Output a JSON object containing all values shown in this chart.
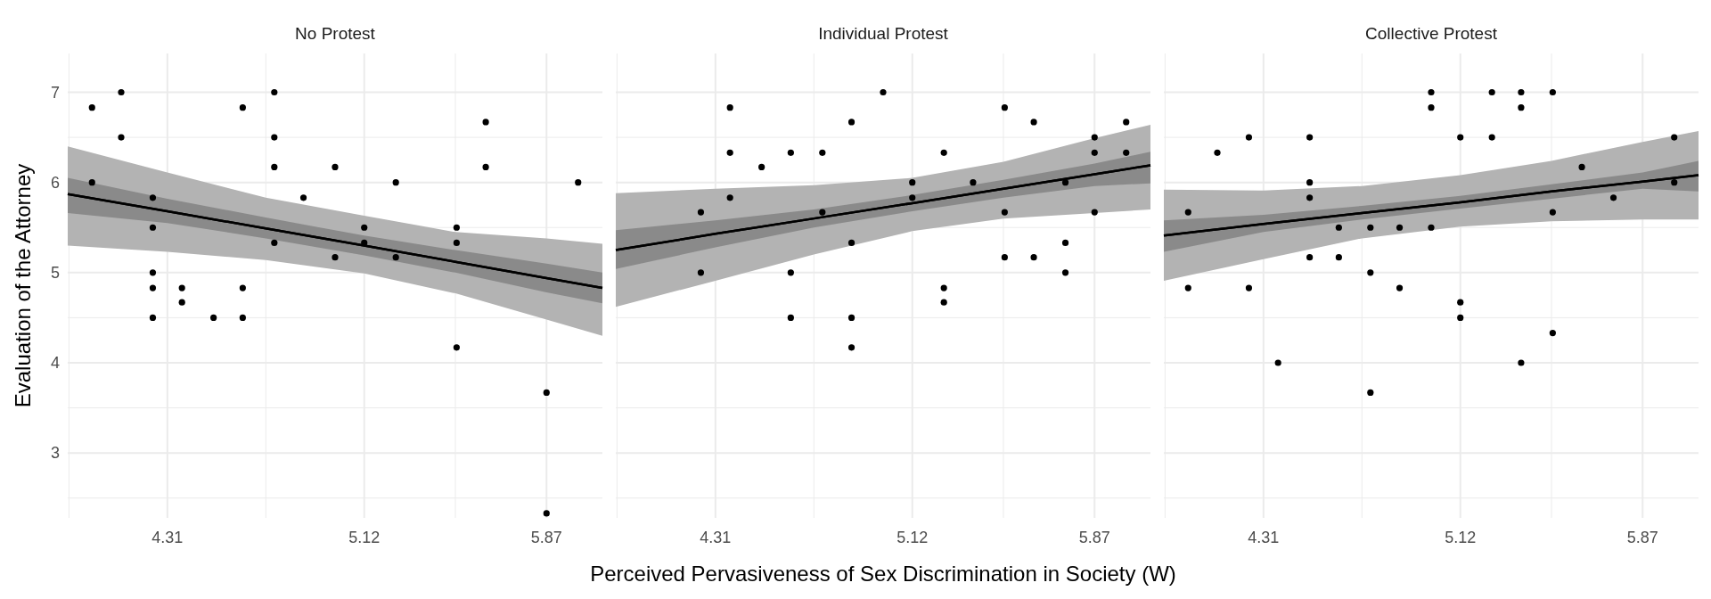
{
  "chart_data": [
    {
      "type": "scatter",
      "title": "No Protest",
      "ylabel": "Evaluation of the Attorney",
      "xlim": [
        3.9,
        6.1
      ],
      "ylim": [
        2.28,
        7.43
      ],
      "grid": true,
      "xticks": [
        {
          "value": 3.905,
          "label": null
        },
        4.31,
        {
          "value": 4.715,
          "label": null
        },
        5.12,
        {
          "value": 5.495,
          "label": null
        },
        5.87
      ],
      "yticks": [
        {
          "value": 2.5,
          "label": null
        },
        3,
        {
          "value": 3.5,
          "label": null
        },
        4,
        {
          "value": 4.5,
          "label": null
        },
        5,
        {
          "value": 5.5,
          "label": null
        },
        6,
        {
          "value": 6.5,
          "label": null
        },
        7
      ],
      "series": [
        {
          "type": "line",
          "color": "#000000",
          "x": [
            3.9,
            4.31,
            4.715,
            5.12,
            5.495,
            5.87,
            6.1
          ],
          "values": [
            5.87,
            5.68,
            5.49,
            5.3,
            5.12,
            4.94,
            4.83
          ],
          "lower": [
            5.3,
            5.23,
            5.14,
            4.99,
            4.77,
            4.48,
            4.3
          ],
          "upper": [
            6.4,
            6.11,
            5.83,
            5.63,
            5.45,
            5.38,
            5.32
          ]
        },
        {
          "type": "line",
          "color": "#000000",
          "x": [
            3.9,
            4.31,
            4.715,
            5.12,
            5.495,
            5.87,
            6.1
          ],
          "values": [
            5.87,
            5.68,
            5.49,
            5.3,
            5.12,
            4.94,
            4.83
          ],
          "lower": [
            5.66,
            5.55,
            5.38,
            5.19,
            5.0,
            4.78,
            4.66
          ],
          "upper": [
            6.05,
            5.82,
            5.61,
            5.41,
            5.25,
            5.1,
            5.0
          ]
        },
        {
          "type": "scatter",
          "color": "#000000",
          "x": [
            4.0,
            4.0,
            4.12,
            4.12,
            4.25,
            4.25,
            4.25,
            4.25,
            4.25,
            4.37,
            4.37,
            4.5,
            4.62,
            4.62,
            4.62,
            4.75,
            4.75,
            4.75,
            4.75,
            4.87,
            5.0,
            5.0,
            5.12,
            5.12,
            5.25,
            5.25,
            5.5,
            5.5,
            5.5,
            5.62,
            5.62,
            5.87,
            5.87,
            6.0
          ],
          "values": [
            6.83,
            6.0,
            7.0,
            6.5,
            5.83,
            5.5,
            5.0,
            4.83,
            4.5,
            4.83,
            4.67,
            4.5,
            6.83,
            4.83,
            4.5,
            7.0,
            6.5,
            6.17,
            5.33,
            5.83,
            6.17,
            5.17,
            5.5,
            5.33,
            6.0,
            5.17,
            5.5,
            5.33,
            4.17,
            6.67,
            6.17,
            3.67,
            2.33,
            6.0
          ]
        }
      ]
    },
    {
      "type": "scatter",
      "title": "Individual Protest",
      "xlabel": "Perceived Pervasiveness of Sex Discrimination in Society (W)",
      "xlim": [
        3.9,
        6.1
      ],
      "ylim": [
        2.28,
        7.43
      ],
      "grid": true,
      "tick_labels": "x",
      "xticks": [
        {
          "value": 3.905,
          "label": null
        },
        4.31,
        {
          "value": 4.715,
          "label": null
        },
        5.12,
        {
          "value": 5.495,
          "label": null
        },
        5.87
      ],
      "yticks": [
        {
          "value": 2.5,
          "label": null
        },
        3,
        {
          "value": 3.5,
          "label": null
        },
        4,
        {
          "value": 4.5,
          "label": null
        },
        5,
        {
          "value": 5.5,
          "label": null
        },
        6,
        {
          "value": 6.5,
          "label": null
        },
        7
      ],
      "series": [
        {
          "type": "line",
          "color": "#000000",
          "x": [
            3.9,
            4.31,
            4.715,
            5.12,
            5.495,
            5.87,
            6.1
          ],
          "values": [
            5.25,
            5.43,
            5.6,
            5.77,
            5.93,
            6.09,
            6.19
          ],
          "lower": [
            4.62,
            4.91,
            5.2,
            5.46,
            5.6,
            5.66,
            5.7
          ],
          "upper": [
            5.88,
            5.93,
            5.97,
            6.05,
            6.23,
            6.49,
            6.64
          ]
        },
        {
          "type": "line",
          "color": "#000000",
          "x": [
            3.9,
            4.31,
            4.715,
            5.12,
            5.495,
            5.87,
            6.1
          ],
          "values": [
            5.25,
            5.43,
            5.6,
            5.77,
            5.93,
            6.09,
            6.19
          ],
          "lower": [
            5.04,
            5.28,
            5.5,
            5.68,
            5.83,
            5.96,
            5.99
          ],
          "upper": [
            5.47,
            5.58,
            5.7,
            5.86,
            6.03,
            6.21,
            6.34
          ]
        },
        {
          "type": "scatter",
          "color": "#000000",
          "x": [
            4.25,
            4.25,
            4.37,
            4.37,
            4.37,
            4.5,
            4.62,
            4.62,
            4.62,
            4.75,
            4.75,
            4.87,
            4.87,
            4.87,
            4.87,
            5.0,
            5.12,
            5.12,
            5.25,
            5.25,
            5.25,
            5.37,
            5.5,
            5.5,
            5.5,
            5.62,
            5.62,
            5.75,
            5.75,
            5.75,
            5.87,
            5.87,
            5.87,
            6.0,
            6.0
          ],
          "values": [
            5.67,
            5.0,
            6.83,
            6.33,
            5.83,
            6.17,
            6.33,
            5.0,
            4.5,
            6.33,
            5.67,
            6.67,
            5.33,
            4.5,
            4.17,
            7.0,
            6.0,
            5.83,
            6.33,
            4.83,
            4.67,
            6.0,
            6.83,
            5.67,
            5.17,
            6.67,
            5.17,
            6.0,
            5.33,
            5.0,
            6.5,
            6.33,
            5.67,
            6.67,
            6.33
          ]
        }
      ]
    },
    {
      "type": "scatter",
      "title": "Collective Protest",
      "xlim": [
        3.9,
        6.1
      ],
      "ylim": [
        2.28,
        7.43
      ],
      "grid": true,
      "tick_labels": "x",
      "xticks": [
        {
          "value": 3.905,
          "label": null
        },
        4.31,
        {
          "value": 4.715,
          "label": null
        },
        5.12,
        {
          "value": 5.495,
          "label": null
        },
        5.87
      ],
      "yticks": [
        {
          "value": 2.5,
          "label": null
        },
        3,
        {
          "value": 3.5,
          "label": null
        },
        4,
        {
          "value": 4.5,
          "label": null
        },
        5,
        {
          "value": 5.5,
          "label": null
        },
        6,
        {
          "value": 6.5,
          "label": null
        },
        7
      ],
      "series": [
        {
          "type": "line",
          "color": "#000000",
          "x": [
            3.9,
            4.31,
            4.715,
            5.12,
            5.495,
            5.87,
            6.1
          ],
          "values": [
            5.41,
            5.54,
            5.66,
            5.78,
            5.9,
            6.01,
            6.08
          ],
          "lower": [
            4.91,
            5.15,
            5.38,
            5.51,
            5.57,
            5.59,
            5.59
          ],
          "upper": [
            5.92,
            5.91,
            5.96,
            6.08,
            6.24,
            6.45,
            6.57
          ]
        },
        {
          "type": "line",
          "color": "#000000",
          "x": [
            3.9,
            4.31,
            4.715,
            5.12,
            5.495,
            5.87,
            6.1
          ],
          "values": [
            5.41,
            5.54,
            5.66,
            5.78,
            5.9,
            6.01,
            6.08
          ],
          "lower": [
            5.23,
            5.45,
            5.59,
            5.71,
            5.82,
            5.93,
            5.9
          ],
          "upper": [
            5.58,
            5.64,
            5.74,
            5.85,
            5.98,
            6.11,
            6.24
          ]
        },
        {
          "type": "scatter",
          "color": "#000000",
          "x": [
            4.0,
            4.0,
            4.12,
            4.25,
            4.25,
            4.37,
            4.5,
            4.5,
            4.5,
            4.5,
            4.62,
            4.62,
            4.75,
            4.75,
            4.75,
            4.87,
            4.87,
            5.0,
            5.0,
            5.0,
            5.12,
            5.12,
            5.12,
            5.25,
            5.25,
            5.37,
            5.37,
            5.37,
            5.5,
            5.5,
            5.5,
            5.62,
            5.75,
            6.0,
            6.0
          ],
          "values": [
            5.67,
            4.83,
            6.33,
            6.5,
            4.83,
            4.0,
            6.5,
            6.0,
            5.83,
            5.17,
            5.5,
            5.17,
            5.5,
            5.0,
            3.67,
            5.5,
            4.83,
            7.0,
            6.83,
            5.5,
            6.5,
            4.67,
            4.5,
            7.0,
            6.5,
            7.0,
            6.83,
            4.0,
            7.0,
            5.67,
            4.33,
            6.17,
            5.83,
            6.5,
            6.0
          ]
        }
      ]
    }
  ]
}
